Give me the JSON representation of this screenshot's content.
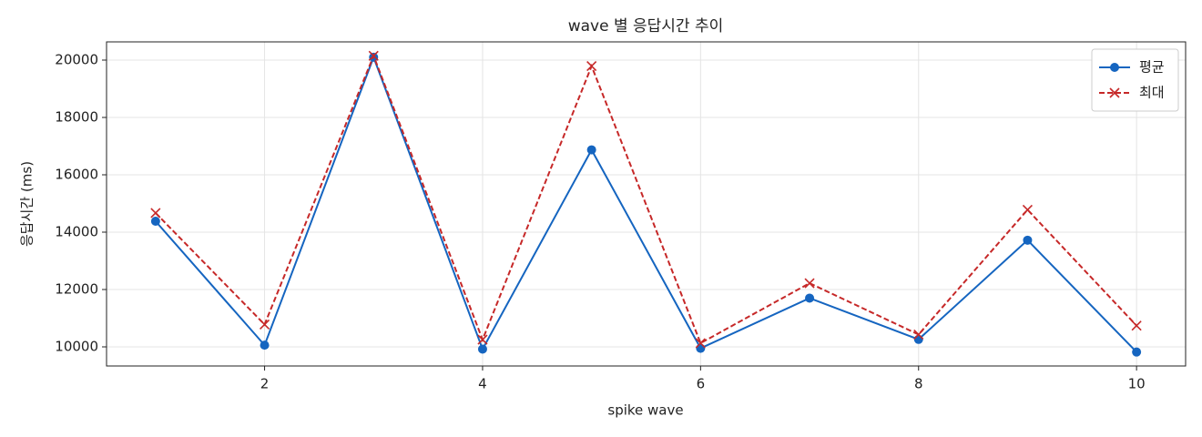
{
  "chart_data": {
    "type": "line",
    "title": "wave 별 응답시간 추이",
    "xlabel": "spike wave",
    "ylabel": "응답시간 (ms)",
    "x": [
      1,
      2,
      3,
      4,
      5,
      6,
      7,
      8,
      9,
      10
    ],
    "series": [
      {
        "name": "평균",
        "color": "#1565c0",
        "marker": "o",
        "linestyle": "solid",
        "values": [
          14380,
          10060,
          20100,
          9920,
          16870,
          9950,
          11700,
          10260,
          13720,
          9820
        ]
      },
      {
        "name": "최대",
        "color": "#c62828",
        "marker": "x",
        "linestyle": "dashed",
        "values": [
          14670,
          10780,
          20150,
          10250,
          19790,
          10130,
          12220,
          10430,
          14780,
          10740
        ]
      }
    ],
    "xlim": [
      0.55,
      10.45
    ],
    "xticks": [
      2,
      4,
      6,
      8,
      10
    ],
    "ylim": [
      9333,
      20635
    ],
    "yticks": [
      10000,
      12000,
      14000,
      16000,
      18000,
      20000
    ],
    "grid": true,
    "legend": "upper right"
  }
}
